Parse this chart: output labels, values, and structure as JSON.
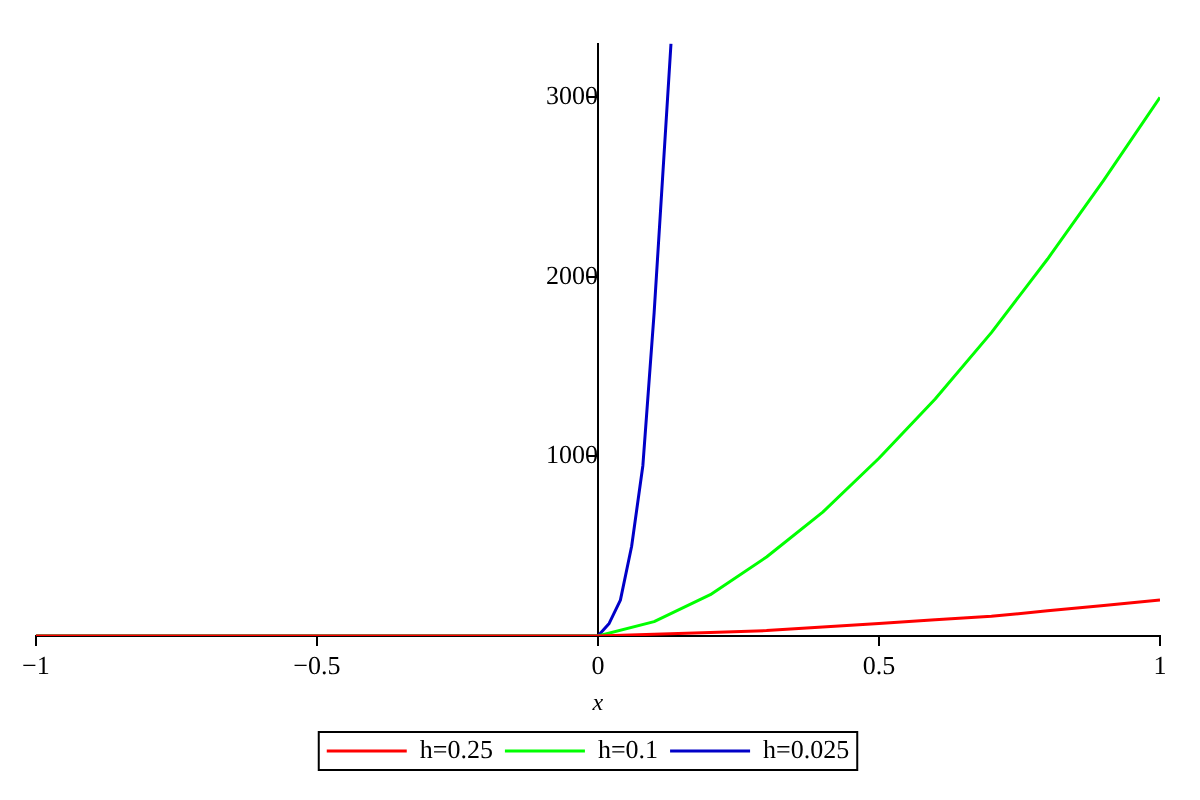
{
  "chart_data": {
    "type": "line",
    "xlabel": "x",
    "xlim": [
      -1,
      1
    ],
    "xticks": [
      -1,
      -0.5,
      0,
      0.5,
      1
    ],
    "ylim": [
      0,
      3300
    ],
    "yticks": [
      1000,
      2000,
      3000
    ],
    "grid": false,
    "legend": "bottom",
    "marker": "none",
    "line_style": "solid",
    "series": [
      {
        "name": "h=0.25",
        "color": "#ff0000",
        "x": [
          -1,
          -0.5,
          0,
          0.1,
          0.2,
          0.3,
          0.4,
          0.5,
          0.6,
          0.7,
          0.8,
          0.9,
          1
        ],
        "values": [
          0,
          0,
          0,
          10,
          20,
          30,
          50,
          70,
          90,
          110,
          140,
          170,
          200
        ]
      },
      {
        "name": "h=0.1",
        "color": "#00ff00",
        "x": [
          -1,
          -0.5,
          0,
          0.1,
          0.2,
          0.3,
          0.4,
          0.5,
          0.6,
          0.7,
          0.8,
          0.9,
          1
        ],
        "values": [
          0,
          0,
          0,
          80,
          230,
          440,
          690,
          990,
          1320,
          1690,
          2100,
          2540,
          3000
        ]
      },
      {
        "name": "h=0.025",
        "color": "#0000c8",
        "x": [
          -1,
          -0.5,
          0,
          0.02,
          0.04,
          0.06,
          0.08,
          0.1,
          0.12,
          0.13
        ],
        "values": [
          0,
          0,
          0,
          70,
          200,
          500,
          950,
          1800,
          2800,
          3300
        ]
      }
    ]
  }
}
